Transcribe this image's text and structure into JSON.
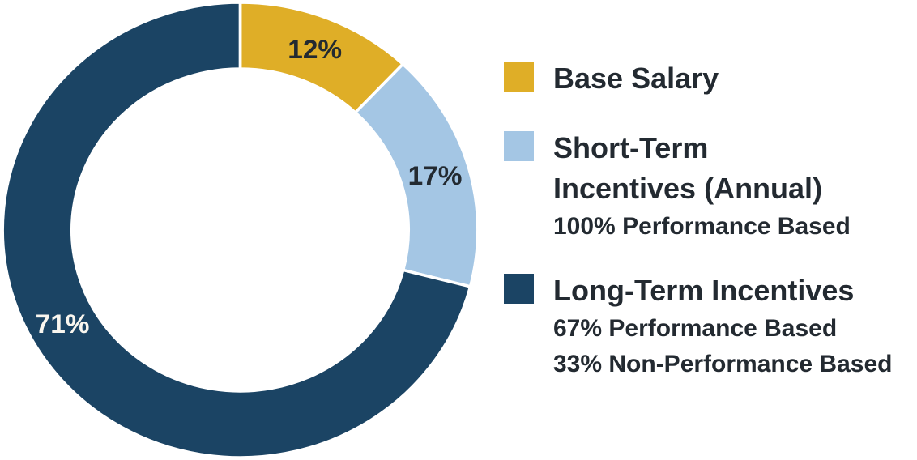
{
  "page": {
    "background_color": "#FFFFFF",
    "text_color": "#232A31"
  },
  "chart_data": {
    "type": "donut",
    "title": "",
    "unit": "%",
    "start_angle_deg": 0,
    "direction": "clockwise",
    "inner_radius_ratio": 0.708,
    "separator_color": "#FFFFFF",
    "legend_position": "right",
    "categories": [
      "Base Salary",
      "Short-Term Incentives (Annual)",
      "Long-Term Incentives"
    ],
    "values": [
      12,
      17,
      71
    ],
    "segments": [
      {
        "name": "Base Salary",
        "value": 12,
        "data_label": "12%",
        "color": "#DFAE27",
        "data_label_color": "#232A31"
      },
      {
        "name": "Short-Term Incentives (Annual)",
        "value": 17,
        "data_label": "17%",
        "color": "#A4C6E4",
        "data_label_color": "#232A31"
      },
      {
        "name": "Long-Term Incentives",
        "value": 71,
        "data_label": "71%",
        "color": "#1B4464",
        "data_label_color": "#F9F6EF"
      }
    ]
  },
  "legend": {
    "items": [
      {
        "swatch_color": "#DFAE27",
        "title_lines": [
          "Base Salary"
        ],
        "sub_lines": []
      },
      {
        "swatch_color": "#A4C6E4",
        "title_lines": [
          "Short-Term",
          "Incentives (Annual)"
        ],
        "sub_lines": [
          "100% Performance Based"
        ]
      },
      {
        "swatch_color": "#1B4464",
        "title_lines": [
          "Long-Term Incentives"
        ],
        "sub_lines": [
          "67% Performance Based",
          "33% Non-Performance Based"
        ]
      }
    ]
  }
}
